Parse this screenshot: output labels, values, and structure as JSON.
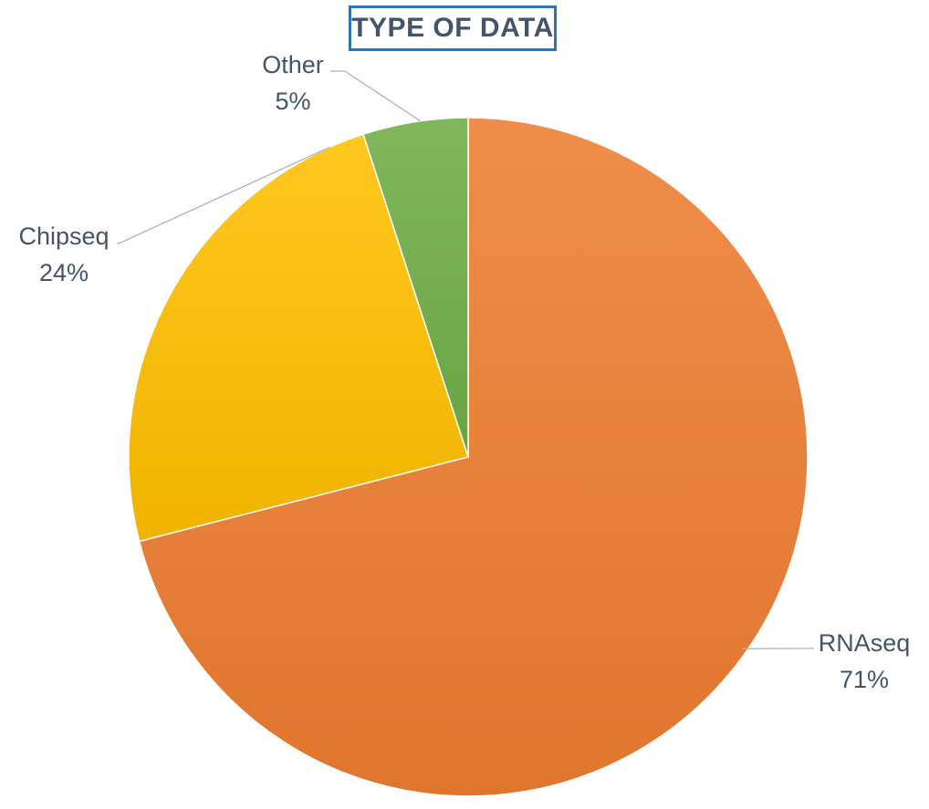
{
  "chart_data": {
    "type": "pie",
    "title": "TYPE OF DATA",
    "slices": [
      {
        "label": "RNAseq",
        "value": 71,
        "percent_label": "71%",
        "color": "#ED7D31"
      },
      {
        "label": "Chipseq",
        "value": 24,
        "percent_label": "24%",
        "color": "#FFC000"
      },
      {
        "label": "Other",
        "value": 5,
        "percent_label": "5%",
        "color": "#70AD47"
      }
    ],
    "start_angle_deg": 0,
    "direction": "clockwise",
    "legend": "none",
    "data_labels": "outside with leader lines"
  },
  "colors": {
    "title_border": "#2E75B6",
    "title_text": "#44546A",
    "label_text": "#44546A",
    "leader_line": "#A5B4C4"
  }
}
